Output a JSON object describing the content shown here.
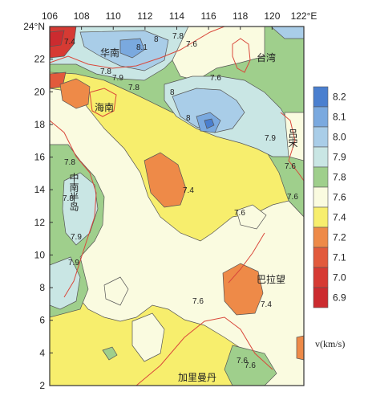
{
  "map": {
    "longitude_ticks": [
      "106",
      "108",
      "110",
      "112",
      "114",
      "116",
      "118",
      "120",
      "122°E"
    ],
    "latitude_ticks": [
      "24°N",
      "22",
      "20",
      "18",
      "16",
      "14",
      "12",
      "10",
      "8",
      "6",
      "4",
      "2"
    ],
    "places": [
      {
        "key": "south-china",
        "name": "华南"
      },
      {
        "key": "taiwan",
        "name": "台湾"
      },
      {
        "key": "hainan",
        "name": "海南"
      },
      {
        "key": "luzon",
        "name": "吕宋"
      },
      {
        "key": "indochina",
        "name": "中南半岛"
      },
      {
        "key": "palawan",
        "name": "巴拉望"
      },
      {
        "key": "kalimantan",
        "name": "加里曼丹"
      }
    ],
    "contour_labels": [
      "7.4",
      "8.1",
      "8",
      "7.8",
      "7.9",
      "7.8",
      "7.8",
      "7.6",
      "8",
      "8",
      "7.6",
      "7.9",
      "7.6",
      "7.6",
      "7.4",
      "7.8",
      "7.8",
      "7.9",
      "7.9",
      "7.6",
      "7.4",
      "7.6",
      "7.6",
      "7.6"
    ]
  },
  "legend": {
    "unit": "v(km/s)",
    "levels": [
      {
        "label": "8.2",
        "color": "#4a7fcf"
      },
      {
        "label": "8.1",
        "color": "#7aa9df"
      },
      {
        "label": "8.0",
        "color": "#a9cde8"
      },
      {
        "label": "7.9",
        "color": "#c9e6e4"
      },
      {
        "label": "7.8",
        "color": "#9fcf8c"
      },
      {
        "label": "7.6",
        "color": "#fafbe0"
      },
      {
        "label": "7.4",
        "color": "#f7ee6d"
      },
      {
        "label": "7.2",
        "color": "#ee8a48"
      },
      {
        "label": "7.1",
        "color": "#e25a3c"
      },
      {
        "label": "7.0",
        "color": "#d63a33"
      },
      {
        "label": "6.9",
        "color": "#cc2b2f"
      }
    ]
  }
}
